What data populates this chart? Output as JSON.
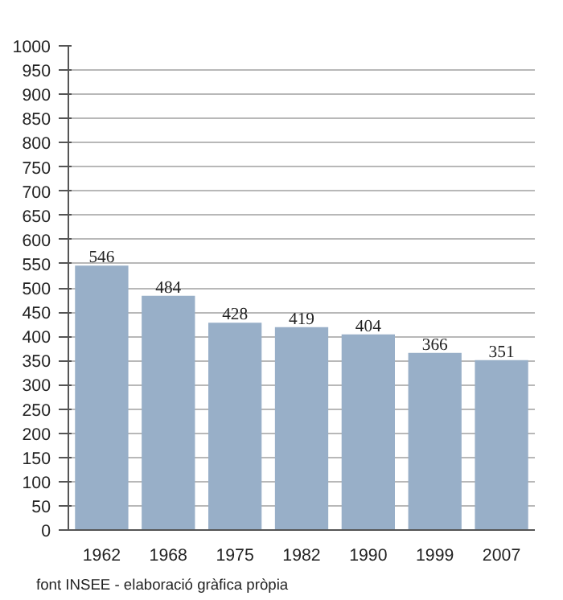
{
  "chart_data": {
    "type": "bar",
    "categories": [
      "1962",
      "1968",
      "1975",
      "1982",
      "1990",
      "1999",
      "2007"
    ],
    "values": [
      546,
      484,
      428,
      419,
      404,
      366,
      351
    ],
    "color": "#98afc8",
    "data_labels": true,
    "grid": "y",
    "ylim": [
      0,
      1000
    ],
    "yticks": [
      0,
      50,
      100,
      150,
      200,
      250,
      300,
      350,
      400,
      450,
      500,
      550,
      600,
      650,
      700,
      750,
      800,
      850,
      900,
      950,
      1000
    ],
    "annotations": [
      "font INSEE - elaboració gràfica pròpia"
    ]
  }
}
